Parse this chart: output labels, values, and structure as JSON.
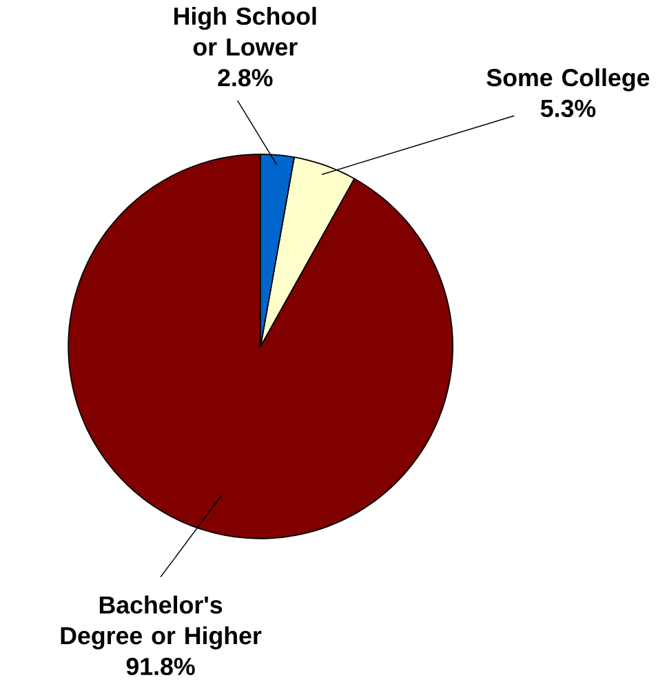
{
  "chart_data": {
    "type": "pie",
    "categories": [
      "High School or Lower",
      "Some College",
      "Bachelor's Degree or Higher"
    ],
    "values": [
      2.8,
      5.3,
      91.8
    ],
    "colors": [
      "#0066cc",
      "#ffffcc",
      "#800000"
    ],
    "value_labels": [
      "2.8%",
      "5.3%",
      "91.8%"
    ]
  }
}
